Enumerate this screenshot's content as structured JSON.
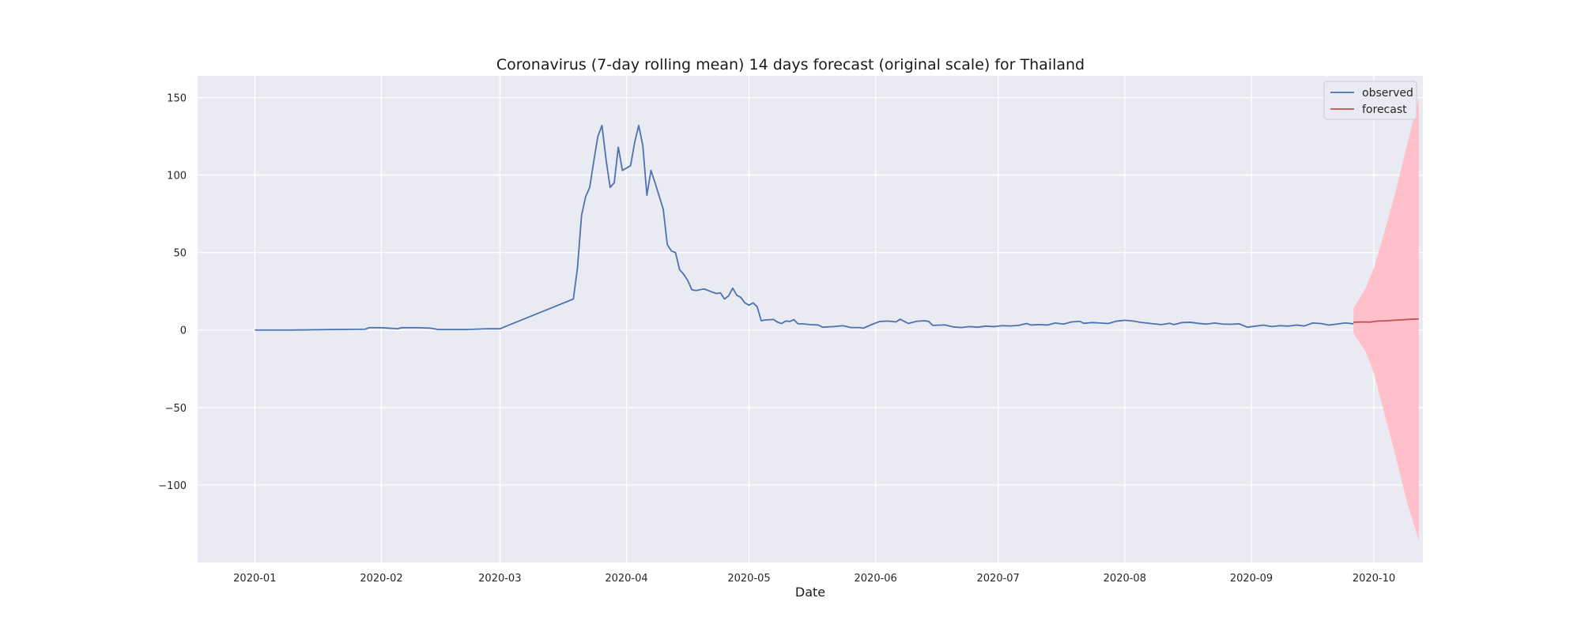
{
  "chart_data": {
    "type": "line",
    "title": "Coronavirus (7-day rolling mean) 14 days forecast (original scale) for Thailand",
    "xlabel": "Date",
    "ylabel": "",
    "grid": true,
    "legend_position": "top-right",
    "ylim": [
      -150,
      164
    ],
    "xlim": [
      "2019-12-18",
      "2020-10-13"
    ],
    "yticks": [
      150,
      100,
      50,
      0,
      -50,
      -100
    ],
    "ytick_labels": [
      "150",
      "100",
      "50",
      "0",
      "−50",
      "−100"
    ],
    "xticks": [
      "2020-01-01",
      "2020-02-01",
      "2020-03-01",
      "2020-04-01",
      "2020-05-01",
      "2020-06-01",
      "2020-07-01",
      "2020-08-01",
      "2020-09-01",
      "2020-10-01"
    ],
    "xtick_labels": [
      "2020-01",
      "2020-02",
      "2020-03",
      "2020-04",
      "2020-05",
      "2020-06",
      "2020-07",
      "2020-08",
      "2020-09",
      "2020-10"
    ],
    "series": [
      {
        "name": "observed",
        "color": "#4c72b0",
        "points": [
          [
            "2020-01-01",
            0
          ],
          [
            "2020-01-10",
            0
          ],
          [
            "2020-01-20",
            0.3
          ],
          [
            "2020-01-28",
            0.5
          ],
          [
            "2020-01-29",
            1.5
          ],
          [
            "2020-02-01",
            1.5
          ],
          [
            "2020-02-05",
            0.8
          ],
          [
            "2020-02-06",
            1.5
          ],
          [
            "2020-02-10",
            1.5
          ],
          [
            "2020-02-13",
            1.2
          ],
          [
            "2020-02-15",
            0.3
          ],
          [
            "2020-02-22",
            0.3
          ],
          [
            "2020-02-27",
            0.8
          ],
          [
            "2020-03-01",
            0.8
          ],
          [
            "2020-03-19",
            20
          ],
          [
            "2020-03-20",
            40
          ],
          [
            "2020-03-21",
            74
          ],
          [
            "2020-03-22",
            86
          ],
          [
            "2020-03-23",
            92
          ],
          [
            "2020-03-24",
            109
          ],
          [
            "2020-03-25",
            125
          ],
          [
            "2020-03-26",
            132
          ],
          [
            "2020-03-27",
            110
          ],
          [
            "2020-03-28",
            92
          ],
          [
            "2020-03-29",
            95
          ],
          [
            "2020-03-30",
            118
          ],
          [
            "2020-03-31",
            103
          ],
          [
            "2020-04-02",
            106
          ],
          [
            "2020-04-03",
            121
          ],
          [
            "2020-04-04",
            132
          ],
          [
            "2020-04-05",
            119
          ],
          [
            "2020-04-06",
            87
          ],
          [
            "2020-04-07",
            103
          ],
          [
            "2020-04-08",
            95
          ],
          [
            "2020-04-10",
            78
          ],
          [
            "2020-04-11",
            55
          ],
          [
            "2020-04-12",
            51
          ],
          [
            "2020-04-13",
            50
          ],
          [
            "2020-04-14",
            39
          ],
          [
            "2020-04-15",
            36
          ],
          [
            "2020-04-16",
            32
          ],
          [
            "2020-04-17",
            26
          ],
          [
            "2020-04-18",
            25.5
          ],
          [
            "2020-04-20",
            26.5
          ],
          [
            "2020-04-22",
            24.5
          ],
          [
            "2020-04-23",
            23.5
          ],
          [
            "2020-04-24",
            24
          ],
          [
            "2020-04-25",
            20
          ],
          [
            "2020-04-26",
            22
          ],
          [
            "2020-04-27",
            27
          ],
          [
            "2020-04-28",
            22.5
          ],
          [
            "2020-04-29",
            21
          ],
          [
            "2020-04-30",
            17.5
          ],
          [
            "2020-05-01",
            16
          ],
          [
            "2020-05-02",
            17.5
          ],
          [
            "2020-05-03",
            15
          ],
          [
            "2020-05-04",
            6
          ],
          [
            "2020-05-05",
            6.5
          ],
          [
            "2020-05-07",
            6.8
          ],
          [
            "2020-05-08",
            5
          ],
          [
            "2020-05-09",
            4.2
          ],
          [
            "2020-05-10",
            5.8
          ],
          [
            "2020-05-11",
            5.5
          ],
          [
            "2020-05-12",
            6.7
          ],
          [
            "2020-05-13",
            4
          ],
          [
            "2020-05-14",
            4
          ],
          [
            "2020-05-16",
            3.5
          ],
          [
            "2020-05-18",
            3.2
          ],
          [
            "2020-05-19",
            1.8
          ],
          [
            "2020-05-22",
            2.3
          ],
          [
            "2020-05-24",
            2.8
          ],
          [
            "2020-05-26",
            1.6
          ],
          [
            "2020-05-28",
            1.6
          ],
          [
            "2020-05-29",
            1.2
          ],
          [
            "2020-05-31",
            3.5
          ],
          [
            "2020-06-02",
            5.5
          ],
          [
            "2020-06-04",
            5.8
          ],
          [
            "2020-06-06",
            5.2
          ],
          [
            "2020-06-07",
            7
          ],
          [
            "2020-06-09",
            4.2
          ],
          [
            "2020-06-11",
            5.6
          ],
          [
            "2020-06-13",
            6
          ],
          [
            "2020-06-14",
            5.5
          ],
          [
            "2020-06-15",
            3
          ],
          [
            "2020-06-18",
            3.3
          ],
          [
            "2020-06-20",
            2
          ],
          [
            "2020-06-22",
            1.6
          ],
          [
            "2020-06-24",
            2.2
          ],
          [
            "2020-06-26",
            1.8
          ],
          [
            "2020-06-28",
            2.5
          ],
          [
            "2020-06-30",
            2.2
          ],
          [
            "2020-07-02",
            2.8
          ],
          [
            "2020-07-04",
            2.6
          ],
          [
            "2020-07-06",
            3
          ],
          [
            "2020-07-08",
            4.2
          ],
          [
            "2020-07-09",
            3.2
          ],
          [
            "2020-07-11",
            3.5
          ],
          [
            "2020-07-13",
            3.2
          ],
          [
            "2020-07-15",
            4.5
          ],
          [
            "2020-07-17",
            3.8
          ],
          [
            "2020-07-19",
            5.2
          ],
          [
            "2020-07-21",
            5.6
          ],
          [
            "2020-07-22",
            4.3
          ],
          [
            "2020-07-24",
            4.8
          ],
          [
            "2020-07-26",
            4.5
          ],
          [
            "2020-07-28",
            4.2
          ],
          [
            "2020-07-30",
            5.7
          ],
          [
            "2020-08-01",
            6.3
          ],
          [
            "2020-08-03",
            5.8
          ],
          [
            "2020-08-05",
            4.9
          ],
          [
            "2020-08-08",
            4
          ],
          [
            "2020-08-10",
            3.5
          ],
          [
            "2020-08-12",
            4.3
          ],
          [
            "2020-08-13",
            3.5
          ],
          [
            "2020-08-15",
            4.8
          ],
          [
            "2020-08-17",
            5
          ],
          [
            "2020-08-19",
            4.3
          ],
          [
            "2020-08-21",
            3.8
          ],
          [
            "2020-08-23",
            4.5
          ],
          [
            "2020-08-25",
            3.8
          ],
          [
            "2020-08-27",
            3.7
          ],
          [
            "2020-08-29",
            4
          ],
          [
            "2020-08-31",
            1.8
          ],
          [
            "2020-09-02",
            2.5
          ],
          [
            "2020-09-04",
            3.2
          ],
          [
            "2020-09-06",
            2.2
          ],
          [
            "2020-09-08",
            2.8
          ],
          [
            "2020-09-10",
            2.5
          ],
          [
            "2020-09-12",
            3.2
          ],
          [
            "2020-09-14",
            2.6
          ],
          [
            "2020-09-16",
            4.5
          ],
          [
            "2020-09-18",
            4.2
          ],
          [
            "2020-09-20",
            3.2
          ],
          [
            "2020-09-22",
            3.8
          ],
          [
            "2020-09-24",
            4.6
          ],
          [
            "2020-09-26",
            4
          ]
        ]
      },
      {
        "name": "forecast",
        "color": "#c44e52",
        "points": [
          [
            "2020-09-26",
            5
          ],
          [
            "2020-09-28",
            5.2
          ],
          [
            "2020-09-30",
            5.1
          ],
          [
            "2020-10-02",
            5.8
          ],
          [
            "2020-10-04",
            5.9
          ],
          [
            "2020-10-06",
            6.3
          ],
          [
            "2020-10-08",
            6.6
          ],
          [
            "2020-10-10",
            6.9
          ],
          [
            "2020-10-12",
            7.2
          ]
        ],
        "confidence_band": {
          "color": "#ffc0cb",
          "upper": [
            [
              "2020-09-26",
              14
            ],
            [
              "2020-09-29",
              27
            ],
            [
              "2020-10-01",
              40
            ],
            [
              "2020-10-03",
              58
            ],
            [
              "2020-10-06",
              86
            ],
            [
              "2020-10-09",
              118
            ],
            [
              "2020-10-12",
              150
            ]
          ],
          "lower": [
            [
              "2020-09-26",
              -2
            ],
            [
              "2020-09-29",
              -14
            ],
            [
              "2020-10-01",
              -28
            ],
            [
              "2020-10-03",
              -48
            ],
            [
              "2020-10-06",
              -78
            ],
            [
              "2020-10-09",
              -110
            ],
            [
              "2020-10-12",
              -136
            ]
          ]
        }
      }
    ]
  }
}
